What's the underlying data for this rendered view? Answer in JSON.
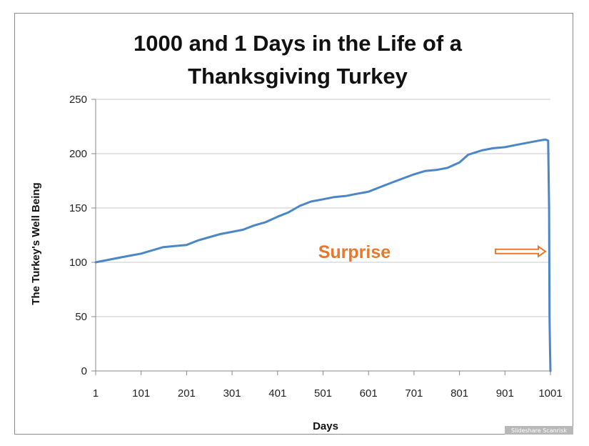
{
  "chart_data": {
    "type": "line",
    "title_lines": [
      "1000 and 1 Days in the Life of a",
      "Thanksgiving Turkey"
    ],
    "xlabel": "Days",
    "ylabel": "The Turkey's Well Being",
    "xlim": [
      1,
      1001
    ],
    "ylim": [
      0,
      250
    ],
    "x_ticks": [
      1,
      101,
      201,
      301,
      401,
      501,
      601,
      701,
      801,
      901,
      1001
    ],
    "y_ticks": [
      0,
      50,
      100,
      150,
      200,
      250
    ],
    "grid": "horizontal",
    "legend": "none",
    "line_color": "#4a86c8",
    "series": [
      {
        "points": [
          [
            1,
            100
          ],
          [
            25,
            102
          ],
          [
            50,
            104
          ],
          [
            75,
            106
          ],
          [
            101,
            108
          ],
          [
            125,
            111
          ],
          [
            150,
            114
          ],
          [
            175,
            115
          ],
          [
            201,
            116
          ],
          [
            225,
            120
          ],
          [
            250,
            123
          ],
          [
            275,
            126
          ],
          [
            301,
            128
          ],
          [
            325,
            130
          ],
          [
            350,
            134
          ],
          [
            375,
            137
          ],
          [
            401,
            142
          ],
          [
            425,
            146
          ],
          [
            450,
            152
          ],
          [
            475,
            156
          ],
          [
            501,
            158
          ],
          [
            525,
            160
          ],
          [
            550,
            161
          ],
          [
            575,
            163
          ],
          [
            601,
            165
          ],
          [
            625,
            169
          ],
          [
            650,
            173
          ],
          [
            675,
            177
          ],
          [
            701,
            181
          ],
          [
            725,
            184
          ],
          [
            750,
            185
          ],
          [
            775,
            187
          ],
          [
            801,
            192
          ],
          [
            820,
            199
          ],
          [
            850,
            203
          ],
          [
            875,
            205
          ],
          [
            901,
            206
          ],
          [
            925,
            208
          ],
          [
            950,
            210
          ],
          [
            975,
            212
          ],
          [
            990,
            213
          ],
          [
            996,
            212
          ],
          [
            998,
            150
          ],
          [
            999,
            50
          ],
          [
            1000,
            20
          ],
          [
            1001,
            0
          ]
        ]
      }
    ],
    "annotation": {
      "text": "Surprise",
      "color": "#e8782b",
      "arrow_y": 110,
      "arrow_x_from": 880,
      "arrow_x_to": 990
    }
  },
  "watermark": "Slideshare Scanrisk"
}
